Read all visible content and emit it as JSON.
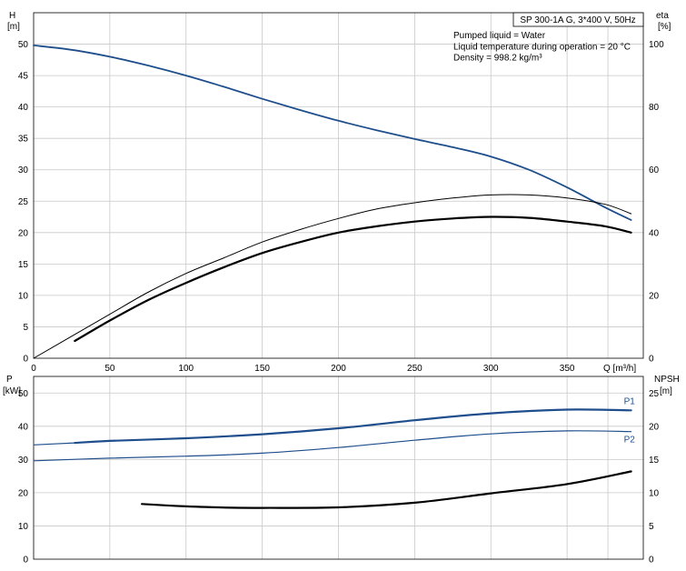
{
  "chart_data": [
    {
      "type": "line",
      "title": "SP 300-1A G, 3*400 V, 50Hz",
      "annotations": [
        "Pumped liquid = Water",
        "Liquid temperature during operation = 20 °C",
        "Density = 998.2 kg/m³"
      ],
      "xlabel": "Q [m³/h]",
      "xlim": [
        0,
        400
      ],
      "xticks": [
        0,
        50,
        100,
        150,
        200,
        250,
        300,
        350
      ],
      "ylabel_left": {
        "name": "H",
        "unit": "[m]"
      },
      "ylim_left": [
        0,
        55
      ],
      "yticks_left": [
        0,
        5,
        10,
        15,
        20,
        25,
        30,
        35,
        40,
        45,
        50
      ],
      "ylabel_right": {
        "name": "eta",
        "unit": "[%]"
      },
      "ylim_right": [
        0,
        110
      ],
      "yticks_right": [
        0,
        20,
        40,
        60,
        80,
        100
      ],
      "grid": true,
      "series": [
        {
          "axis": "left",
          "color": "#1f4e8c",
          "width": 1.8,
          "x": [
            0,
            25,
            50,
            75,
            100,
            125,
            150,
            175,
            200,
            225,
            250,
            275,
            300,
            325,
            350,
            375,
            392
          ],
          "y": [
            49.8,
            49.1,
            48.0,
            46.6,
            45.0,
            43.2,
            41.3,
            39.5,
            37.8,
            36.3,
            34.9,
            33.6,
            32.1,
            30.0,
            27.2,
            24.0,
            22.0
          ]
        },
        {
          "axis": "right",
          "color": "#000000",
          "width": 1.0,
          "x": [
            0,
            25,
            50,
            75,
            100,
            125,
            150,
            175,
            200,
            225,
            250,
            275,
            300,
            325,
            350,
            375,
            392
          ],
          "y": [
            0,
            7,
            14,
            21,
            27,
            32,
            37,
            41,
            44.5,
            47.5,
            49.5,
            51,
            52,
            52,
            51,
            49,
            46
          ]
        },
        {
          "axis": "right",
          "color": "#000000",
          "width": 2.2,
          "x": [
            27,
            50,
            75,
            100,
            125,
            150,
            175,
            200,
            225,
            250,
            275,
            300,
            325,
            350,
            375,
            392
          ],
          "y": [
            5.5,
            12,
            18.5,
            24,
            29,
            33.5,
            37,
            40,
            42,
            43.5,
            44.5,
            45,
            44.7,
            43.5,
            42,
            40
          ]
        }
      ]
    },
    {
      "type": "line",
      "xlim": [
        0,
        400
      ],
      "xticks": [
        0,
        50,
        100,
        150,
        200,
        250,
        300,
        350
      ],
      "ylabel_left": {
        "name": "P",
        "unit": "[kW]"
      },
      "ylim_left": [
        0,
        55
      ],
      "yticks_left": [
        0,
        10,
        20,
        30,
        40,
        50
      ],
      "ylabel_right": {
        "name": "NPSH",
        "unit": "[m]"
      },
      "ylim_right": [
        0,
        27.5
      ],
      "yticks_right": [
        0,
        5,
        10,
        15,
        20,
        25
      ],
      "grid": true,
      "series": [
        {
          "name": "P1",
          "axis": "left",
          "color": "#1f4e8c",
          "width": 2.2,
          "label_pos": "above-end",
          "x": [
            27,
            50,
            100,
            150,
            200,
            250,
            300,
            350,
            392
          ],
          "y": [
            35.0,
            35.6,
            36.4,
            37.6,
            39.4,
            41.8,
            43.9,
            45.0,
            44.8
          ]
        },
        {
          "name": "",
          "axis": "left",
          "color": "#1f4e8c",
          "width": 1.2,
          "x": [
            0,
            27
          ],
          "y": [
            34.4,
            35.0
          ]
        },
        {
          "name": "P2",
          "axis": "left",
          "color": "#1f4e8c",
          "width": 1.2,
          "label_pos": "below-end",
          "x": [
            0,
            50,
            100,
            150,
            200,
            250,
            300,
            350,
            392
          ],
          "y": [
            29.6,
            30.4,
            31.0,
            31.9,
            33.6,
            35.8,
            37.7,
            38.6,
            38.4
          ]
        },
        {
          "name": "",
          "axis": "right",
          "color": "#000000",
          "width": 2.2,
          "x": [
            71,
            100,
            130,
            150,
            200,
            250,
            300,
            350,
            392
          ],
          "y": [
            8.3,
            7.95,
            7.75,
            7.72,
            7.8,
            8.5,
            9.9,
            11.3,
            13.2
          ]
        }
      ]
    }
  ]
}
